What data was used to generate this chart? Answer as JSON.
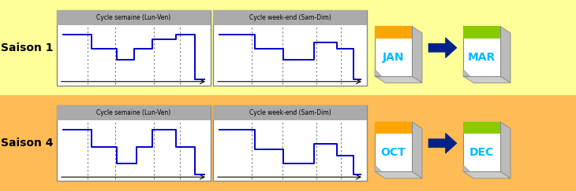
{
  "bg_color_top": "#FFFF99",
  "bg_color_bottom": "#FFBB55",
  "saison1_label": "Saison 1",
  "saison4_label": "Saison 4",
  "cycle_semaine_label": "Cycle semaine (Lun-Ven)",
  "cycle_weekend_label": "Cycle week-end (Sam-Dim)",
  "jan_label": "JAN",
  "mar_label": "MAR",
  "oct_label": "OCT",
  "dec_label": "DEC",
  "line_color": "#0000CC",
  "header_color": "#AAAAAA",
  "calendar_orange": "#FFA500",
  "calendar_green": "#88CC00",
  "arrow_color": "#002288",
  "text_color_cyan": "#00BBFF",
  "dashed_color": "#666666",
  "box_edge": "#888888",
  "figw": 7.3,
  "figh": 2.43,
  "dpi": 100
}
